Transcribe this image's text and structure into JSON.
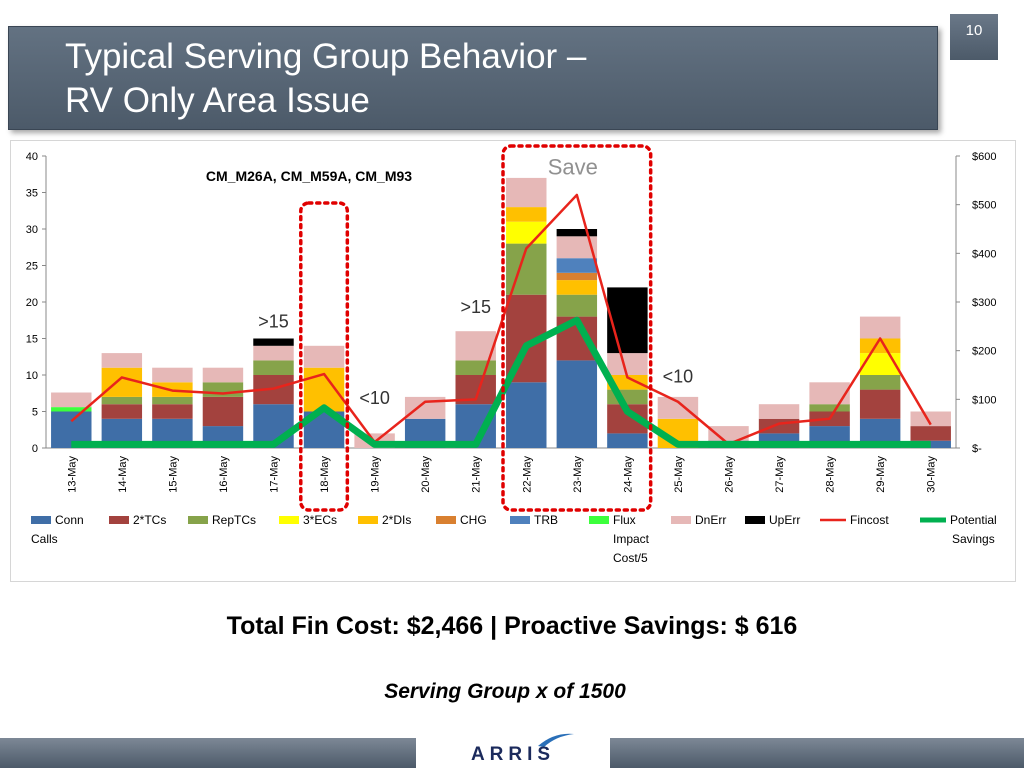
{
  "slide": {
    "title_line1": "Typical Serving Group Behavior –",
    "title_line2": "RV Only Area Issue",
    "number": "10"
  },
  "summary": {
    "line": "Total Fin Cost: $2,466  | Proactive Savings: $ 616",
    "subline": "Serving Group x of 1500"
  },
  "logo": {
    "text": "ARRIS"
  },
  "chart_data": {
    "type": "bar",
    "stacked": true,
    "title": "CM_M26A, CM_M59A, CM_M93",
    "categories": [
      "13-May",
      "14-May",
      "15-May",
      "16-May",
      "17-May",
      "18-May",
      "19-May",
      "20-May",
      "21-May",
      "22-May",
      "23-May",
      "24-May",
      "25-May",
      "26-May",
      "27-May",
      "28-May",
      "29-May",
      "30-May"
    ],
    "left_axis": {
      "min": 0,
      "max": 40,
      "ticks": [
        "0",
        "5",
        "10",
        "15",
        "20",
        "25",
        "30",
        "35",
        "40"
      ]
    },
    "right_axis": {
      "min": 0,
      "max": 600,
      "ticks": [
        "$-",
        "$100",
        "$200",
        "$300",
        "$400",
        "$500",
        "$600"
      ]
    },
    "series": [
      {
        "name": "Conn Calls",
        "color": "#3f6ea7",
        "values": [
          5,
          4,
          4,
          3,
          6,
          5,
          0,
          4,
          6,
          9,
          12,
          2,
          0,
          1,
          2,
          3,
          4,
          1
        ]
      },
      {
        "name": "2*TCs",
        "color": "#a3423e",
        "values": [
          0,
          2,
          2,
          4,
          4,
          0,
          0,
          0,
          4,
          12,
          6,
          4,
          0,
          0,
          2,
          2,
          4,
          2
        ]
      },
      {
        "name": "RepTCs",
        "color": "#86a34a",
        "values": [
          0,
          1,
          1,
          2,
          2,
          0,
          0,
          0,
          2,
          7,
          3,
          2,
          0,
          0,
          0,
          1,
          2,
          0
        ]
      },
      {
        "name": "3*ECs",
        "color": "#ffff00",
        "values": [
          0,
          0,
          0,
          0,
          0,
          0,
          0,
          0,
          0,
          3,
          0,
          0,
          0,
          0,
          0,
          0,
          3,
          0
        ]
      },
      {
        "name": "2*DIs",
        "color": "#ffc000",
        "values": [
          0,
          4,
          2,
          0,
          0,
          6,
          0,
          0,
          0,
          2,
          2,
          2,
          4,
          0,
          0,
          0,
          2,
          0
        ]
      },
      {
        "name": "CHG",
        "color": "#d98030",
        "values": [
          0,
          0,
          0,
          0,
          0,
          0,
          0,
          0,
          0,
          0,
          1,
          0,
          0,
          0,
          0,
          0,
          0,
          0
        ]
      },
      {
        "name": "TRB",
        "color": "#4f81bd",
        "values": [
          0,
          0,
          0,
          0,
          0,
          0,
          0,
          0,
          0,
          0,
          2,
          0,
          0,
          0,
          0,
          0,
          0,
          0
        ]
      },
      {
        "name": "Flux Impact Cost/5",
        "color": "#3cff3c",
        "values": [
          0.6,
          0,
          0,
          0,
          0,
          0,
          0,
          0,
          0,
          0,
          0,
          0,
          0,
          0,
          0,
          0,
          0,
          0
        ]
      },
      {
        "name": "DnErr",
        "color": "#e6b8b7",
        "values": [
          2,
          2,
          2,
          2,
          2,
          3,
          2,
          3,
          4,
          4,
          3,
          3,
          3,
          2,
          2,
          3,
          3,
          2
        ]
      },
      {
        "name": "UpErr",
        "color": "#000000",
        "values": [
          0,
          0,
          0,
          0,
          1,
          0,
          0,
          0,
          0,
          0,
          1,
          9,
          0,
          0,
          0,
          0,
          0,
          0
        ]
      }
    ],
    "line_series": [
      {
        "name": "Fincost",
        "color": "#e8241c",
        "axis": "right",
        "values": [
          55,
          145,
          118,
          112,
          122,
          152,
          12,
          95,
          100,
          410,
          520,
          145,
          95,
          8,
          50,
          60,
          225,
          48
        ]
      },
      {
        "name": "Potential Savings",
        "color": "#00b050",
        "axis": "left",
        "values": [
          0.5,
          0.5,
          0.5,
          0.5,
          0.5,
          5.5,
          0.5,
          0.5,
          0.5,
          14,
          17.5,
          5,
          0.5,
          0.5,
          0.5,
          0.5,
          0.5,
          0.5
        ]
      }
    ],
    "annotations": [
      {
        "text": ">15",
        "category": "17-May",
        "value": 16.5
      },
      {
        "text": ">15",
        "category": "21-May",
        "value": 18.5
      },
      {
        "text": "<10",
        "category": "19-May",
        "value": 6
      },
      {
        "text": "<10",
        "category": "25-May",
        "value": 9
      },
      {
        "text": "Save",
        "category": "23-May",
        "value": 37.5
      }
    ],
    "highlight_boxes": [
      {
        "from": "18-May",
        "to": "18-May"
      },
      {
        "from": "22-May",
        "to": "24-May"
      }
    ]
  }
}
